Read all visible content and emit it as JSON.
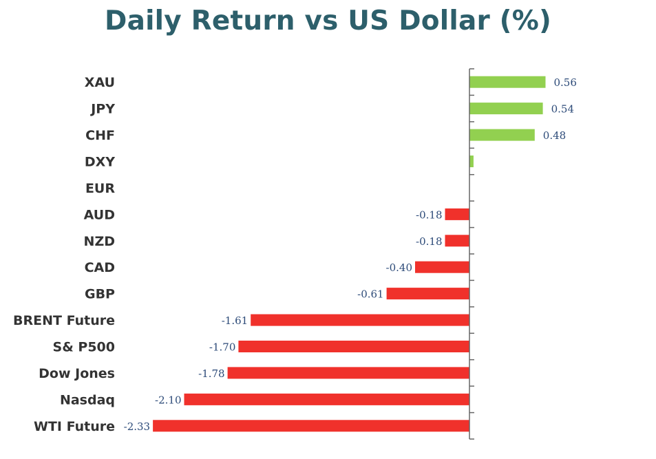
{
  "chart_data": {
    "type": "bar",
    "orientation": "horizontal",
    "title": "Daily Return vs US Dollar (%)",
    "categories": [
      "XAU",
      "JPY",
      "CHF",
      "DXY",
      "EUR",
      "AUD",
      "NZD",
      "CAD",
      "GBP",
      "BRENT Future",
      "S& P500",
      "Dow Jones",
      "Nasdaq",
      "WTI Future"
    ],
    "values": [
      0.56,
      0.54,
      0.48,
      0.03,
      0.0,
      -0.18,
      -0.18,
      -0.4,
      -0.61,
      -1.61,
      -1.7,
      -1.78,
      -2.1,
      -2.33
    ],
    "data_labels": [
      "0.56",
      "0.54",
      "0.48",
      "",
      "",
      "-0.18",
      "-0.18",
      "-0.40",
      "-0.61",
      "-1.61",
      "-1.70",
      "-1.78",
      "-2.10",
      "-2.33"
    ],
    "colors": {
      "positive": "#92d050",
      "negative": "#f0312b",
      "axis": "#666666",
      "title": "#2d5f6b",
      "category_label": "#333333",
      "value_label": "#2c4a78"
    },
    "xlim": [
      -2.33,
      0.56
    ],
    "grid": false,
    "legend": "none"
  }
}
